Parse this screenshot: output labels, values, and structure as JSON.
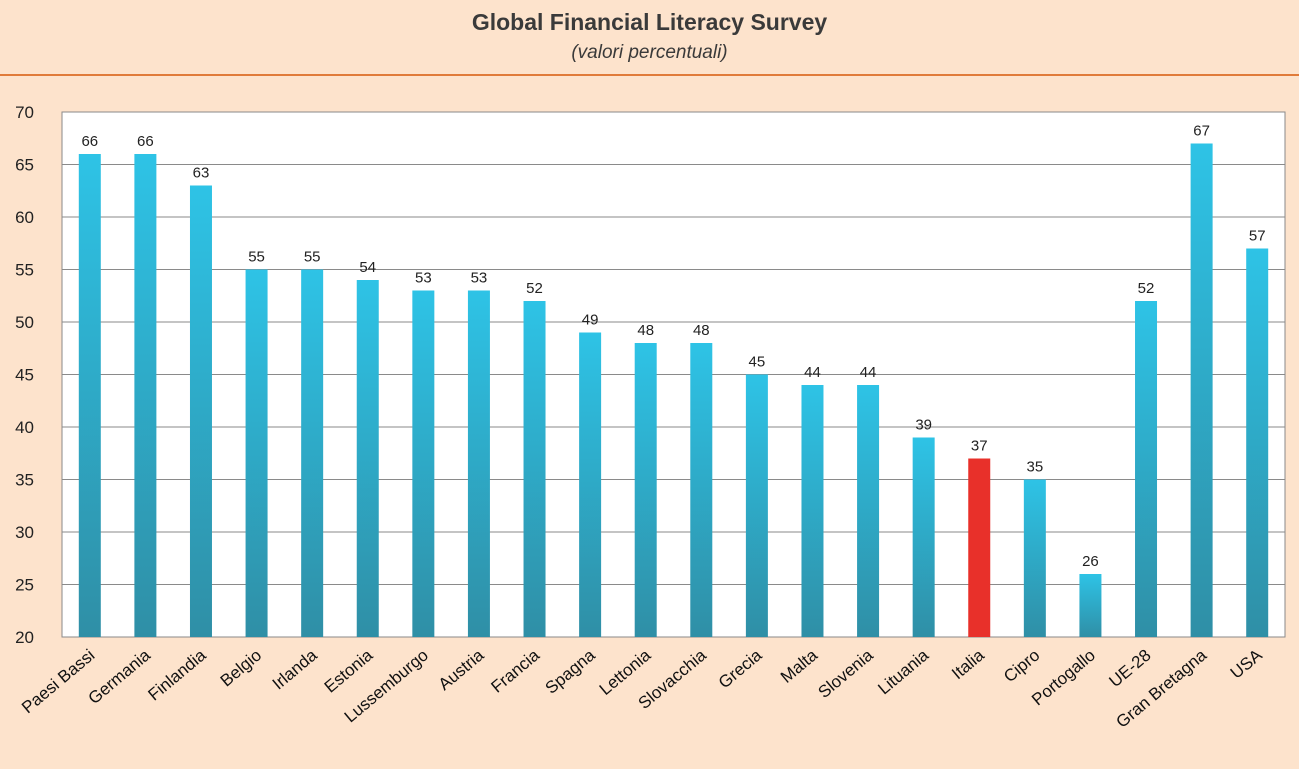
{
  "chart_data": {
    "type": "bar",
    "title": "Global Financial Literacy Survey",
    "subtitle": "(valori percentuali)",
    "categories": [
      "Paesi Bassi",
      "Germania",
      "Finlandia",
      "Belgio",
      "Irlanda",
      "Estonia",
      "Lussemburgo",
      "Austria",
      "Francia",
      "Spagna",
      "Lettonia",
      "Slovacchia",
      "Grecia",
      "Malta",
      "Slovenia",
      "Lituania",
      "Italia",
      "Cipro",
      "Portogallo",
      "UE-28",
      "Gran Bretagna",
      "USA"
    ],
    "values": [
      66,
      66,
      63,
      55,
      55,
      54,
      53,
      53,
      52,
      49,
      48,
      48,
      45,
      44,
      44,
      39,
      37,
      35,
      26,
      52,
      67,
      57
    ],
    "data_labels": [
      "66",
      "66",
      "63",
      "55",
      "55",
      "54",
      "53",
      "53",
      "52",
      "49",
      "48",
      "48",
      "45",
      "44",
      "44",
      "39",
      "37",
      "35",
      "26",
      "52",
      "67",
      "57"
    ],
    "ylim": [
      20,
      70
    ],
    "yticks": [
      20,
      25,
      30,
      35,
      40,
      45,
      50,
      55,
      60,
      65,
      70
    ],
    "grid": true,
    "highlight_category": "Italia",
    "colors": {
      "bar_top": "#2ec3e6",
      "bar_bottom": "#2f8fa6",
      "highlight": "#e8302a",
      "background": "#fde3cc",
      "plot_background": "#ffffff",
      "grid": "#8a8a8a",
      "header_rule": "#e07b3a"
    }
  }
}
